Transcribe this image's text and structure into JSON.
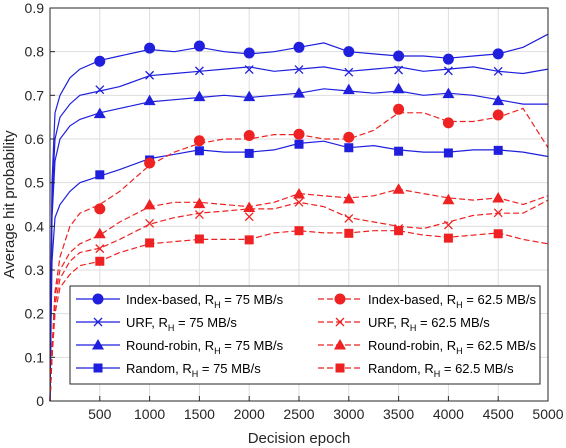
{
  "chart_data": {
    "type": "line",
    "xlabel": "Decision epoch",
    "ylabel": "Average hit probability",
    "xlim": [
      0,
      5000
    ],
    "ylim": [
      0,
      0.9
    ],
    "xticks": [
      500,
      1000,
      1500,
      2000,
      2500,
      3000,
      3500,
      4000,
      4500,
      5000
    ],
    "yticks": [
      0,
      0.1,
      0.2,
      0.3,
      0.4,
      0.5,
      0.6,
      0.7,
      0.8,
      0.9
    ],
    "xtick_labels": [
      "500",
      "1000",
      "1500",
      "2000",
      "2500",
      "3000",
      "3500",
      "4000",
      "4500",
      "5000"
    ],
    "ytick_labels": [
      "0",
      "0.1",
      "0.2",
      "0.3",
      "0.4",
      "0.5",
      "0.6",
      "0.7",
      "0.8",
      "0.9"
    ],
    "grid": true,
    "legend_position": "bottom-center",
    "colors": {
      "blue": "#1f1fdd",
      "red": "#ee2222"
    },
    "x": [
      0,
      20,
      50,
      100,
      200,
      300,
      500,
      700,
      1000,
      1250,
      1500,
      1750,
      2000,
      2250,
      2500,
      2750,
      3000,
      3250,
      3500,
      3750,
      4000,
      4250,
      4500,
      4750,
      5000
    ],
    "series": [
      {
        "name": "Index-based, R_H = 75 MB/s",
        "legend_main": "Index-based, R",
        "legend_sub": "H",
        "legend_tail": " = 75 MB/s",
        "color": "blue",
        "dash": "solid",
        "marker": "circle",
        "values": [
          0,
          0.5,
          0.66,
          0.7,
          0.74,
          0.76,
          0.78,
          0.79,
          0.805,
          0.8,
          0.81,
          0.8,
          0.795,
          0.8,
          0.81,
          0.82,
          0.8,
          0.795,
          0.79,
          0.79,
          0.785,
          0.79,
          0.795,
          0.81,
          0.84
        ],
        "markers": [
          [
            500,
            0.778
          ],
          [
            1000,
            0.808
          ],
          [
            1500,
            0.813
          ],
          [
            2000,
            0.797
          ],
          [
            2500,
            0.81
          ],
          [
            3000,
            0.8
          ],
          [
            3500,
            0.79
          ],
          [
            4000,
            0.783
          ],
          [
            4500,
            0.795
          ]
        ]
      },
      {
        "name": "URF, R_H = 75 MB/s",
        "legend_main": "URF, R",
        "legend_sub": "H",
        "legend_tail": " = 75 MB/s",
        "color": "blue",
        "dash": "solid",
        "marker": "x",
        "values": [
          0,
          0.46,
          0.6,
          0.65,
          0.68,
          0.7,
          0.71,
          0.72,
          0.745,
          0.75,
          0.755,
          0.76,
          0.765,
          0.755,
          0.76,
          0.765,
          0.755,
          0.76,
          0.765,
          0.755,
          0.76,
          0.765,
          0.755,
          0.75,
          0.76
        ],
        "markers": [
          [
            500,
            0.713
          ],
          [
            1000,
            0.746
          ],
          [
            1500,
            0.756
          ],
          [
            2000,
            0.759
          ],
          [
            2500,
            0.759
          ],
          [
            3000,
            0.753
          ],
          [
            3500,
            0.758
          ],
          [
            4000,
            0.756
          ],
          [
            4500,
            0.755
          ]
        ]
      },
      {
        "name": "Round-robin, R_H = 75 MB/s",
        "legend_main": "Round-robin, R",
        "legend_sub": "H",
        "legend_tail": " = 75 MB/s",
        "color": "blue",
        "dash": "solid",
        "marker": "triangle",
        "values": [
          0,
          0.42,
          0.55,
          0.6,
          0.63,
          0.645,
          0.66,
          0.67,
          0.685,
          0.69,
          0.695,
          0.7,
          0.695,
          0.7,
          0.705,
          0.715,
          0.71,
          0.705,
          0.71,
          0.7,
          0.705,
          0.7,
          0.69,
          0.68,
          0.68
        ],
        "markers": [
          [
            500,
            0.658
          ],
          [
            1000,
            0.688
          ],
          [
            1500,
            0.697
          ],
          [
            2000,
            0.697
          ],
          [
            2500,
            0.705
          ],
          [
            3000,
            0.713
          ],
          [
            3500,
            0.715
          ],
          [
            4000,
            0.704
          ],
          [
            4500,
            0.688
          ]
        ]
      },
      {
        "name": "Random, R_H = 75 MB/s",
        "legend_main": "Random, R",
        "legend_sub": "H",
        "legend_tail": " = 75 MB/s",
        "color": "blue",
        "dash": "solid",
        "marker": "square",
        "values": [
          0,
          0.32,
          0.42,
          0.45,
          0.48,
          0.5,
          0.515,
          0.53,
          0.555,
          0.565,
          0.575,
          0.57,
          0.57,
          0.575,
          0.59,
          0.595,
          0.58,
          0.585,
          0.575,
          0.57,
          0.57,
          0.575,
          0.575,
          0.57,
          0.56
        ],
        "markers": [
          [
            500,
            0.518
          ],
          [
            1000,
            0.552
          ],
          [
            1500,
            0.573
          ],
          [
            2000,
            0.567
          ],
          [
            2500,
            0.588
          ],
          [
            3000,
            0.58
          ],
          [
            3500,
            0.572
          ],
          [
            4000,
            0.568
          ],
          [
            4500,
            0.574
          ]
        ]
      },
      {
        "name": "Index-based, R_H = 62.5 MB/s",
        "legend_main": "Index-based, R",
        "legend_sub": "H",
        "legend_tail": " = 62.5 MB/s",
        "color": "red",
        "dash": "dashed",
        "marker": "circle",
        "values": [
          0,
          0.12,
          0.25,
          0.33,
          0.4,
          0.43,
          0.45,
          0.48,
          0.54,
          0.57,
          0.59,
          0.6,
          0.6,
          0.61,
          0.61,
          0.6,
          0.6,
          0.62,
          0.66,
          0.66,
          0.64,
          0.64,
          0.65,
          0.67,
          0.58
        ],
        "markers": [
          [
            500,
            0.44
          ],
          [
            1000,
            0.545
          ],
          [
            1500,
            0.596
          ],
          [
            2000,
            0.608
          ],
          [
            2500,
            0.611
          ],
          [
            3000,
            0.604
          ],
          [
            3500,
            0.668
          ],
          [
            4000,
            0.637
          ],
          [
            4500,
            0.655
          ]
        ]
      },
      {
        "name": "URF, R_H = 62.5 MB/s",
        "legend_main": "URF, R",
        "legend_sub": "H",
        "legend_tail": " = 62.5 MB/s",
        "color": "red",
        "dash": "dashed",
        "marker": "x",
        "values": [
          0,
          0.1,
          0.22,
          0.28,
          0.32,
          0.34,
          0.35,
          0.37,
          0.405,
          0.42,
          0.43,
          0.435,
          0.44,
          0.44,
          0.455,
          0.445,
          0.42,
          0.41,
          0.4,
          0.395,
          0.41,
          0.425,
          0.43,
          0.43,
          0.46
        ],
        "markers": [
          [
            500,
            0.349
          ],
          [
            1000,
            0.407
          ],
          [
            1500,
            0.427
          ],
          [
            2000,
            0.422
          ],
          [
            2500,
            0.455
          ],
          [
            3000,
            0.418
          ],
          [
            3500,
            0.395
          ],
          [
            4000,
            0.403
          ],
          [
            4500,
            0.431
          ]
        ]
      },
      {
        "name": "Round-robin, R_H = 62.5 MB/s",
        "legend_main": "Round-robin, R",
        "legend_sub": "H",
        "legend_tail": " = 62.5 MB/s",
        "color": "red",
        "dash": "dashed",
        "marker": "triangle",
        "values": [
          0,
          0.1,
          0.24,
          0.3,
          0.34,
          0.36,
          0.38,
          0.41,
          0.445,
          0.455,
          0.455,
          0.45,
          0.445,
          0.455,
          0.475,
          0.47,
          0.465,
          0.47,
          0.485,
          0.475,
          0.465,
          0.46,
          0.465,
          0.45,
          0.47
        ],
        "markers": [
          [
            500,
            0.383
          ],
          [
            1000,
            0.449
          ],
          [
            1500,
            0.452
          ],
          [
            2000,
            0.443
          ],
          [
            2500,
            0.474
          ],
          [
            3000,
            0.463
          ],
          [
            3500,
            0.485
          ],
          [
            4000,
            0.461
          ],
          [
            4500,
            0.465
          ]
        ]
      },
      {
        "name": "Random, R_H = 62.5 MB/s",
        "legend_main": "Random, R",
        "legend_sub": "H",
        "legend_tail": " = 62.5 MB/s",
        "color": "red",
        "dash": "dashed",
        "marker": "square",
        "values": [
          0,
          0.1,
          0.2,
          0.26,
          0.29,
          0.31,
          0.32,
          0.34,
          0.36,
          0.365,
          0.37,
          0.37,
          0.37,
          0.385,
          0.39,
          0.385,
          0.385,
          0.39,
          0.39,
          0.38,
          0.375,
          0.38,
          0.385,
          0.37,
          0.36
        ],
        "markers": [
          [
            500,
            0.32
          ],
          [
            1000,
            0.362
          ],
          [
            1500,
            0.371
          ],
          [
            2000,
            0.369
          ],
          [
            2500,
            0.39
          ],
          [
            3000,
            0.384
          ],
          [
            3500,
            0.39
          ],
          [
            4000,
            0.373
          ],
          [
            4500,
            0.383
          ]
        ]
      }
    ]
  }
}
